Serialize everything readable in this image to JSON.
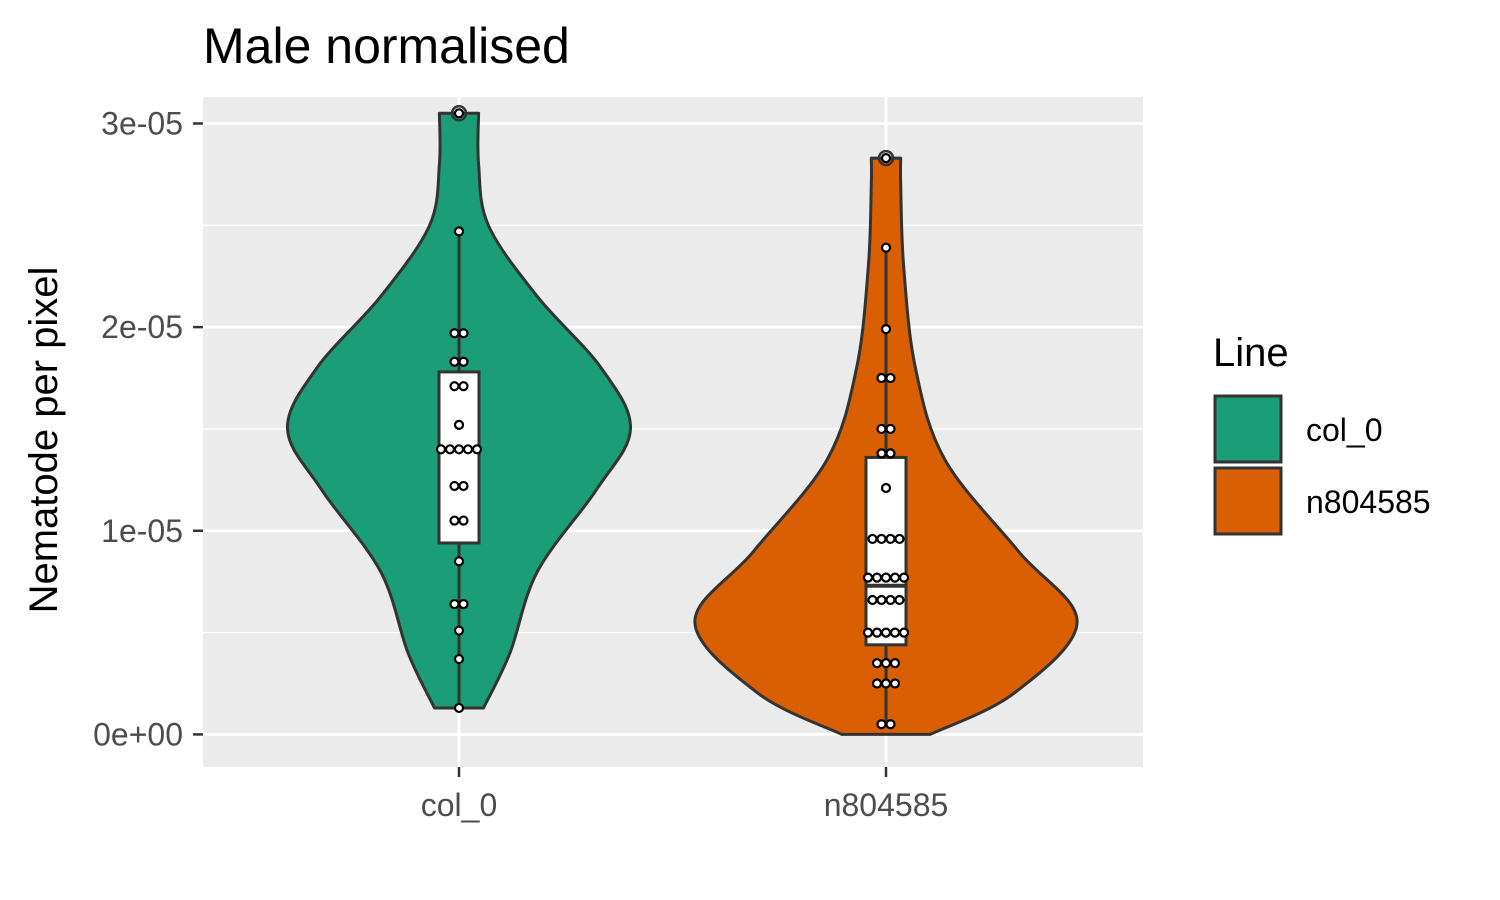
{
  "chart_data": {
    "type": "violin",
    "title": "Male normalised",
    "xlabel": "",
    "ylabel": "Nematode per pixel",
    "ylim": [
      -1.6e-06,
      3.13e-05
    ],
    "yticks": [
      {
        "value": 0.0,
        "label": "0e+00"
      },
      {
        "value": 1e-05,
        "label": "1e-05"
      },
      {
        "value": 2e-05,
        "label": "2e-05"
      },
      {
        "value": 3e-05,
        "label": "3e-05"
      }
    ],
    "categories": [
      "col_0",
      "n804585"
    ],
    "legend": {
      "title": "Line",
      "position": "right"
    },
    "grid": true,
    "series": [
      {
        "name": "col_0",
        "color": "#1b9e77",
        "violin": [
          [
            1.3e-06,
            2.5e-06
          ],
          [
            4e-06,
            5.2e-06
          ],
          [
            8e-06,
            8e-06
          ],
          [
            1.2e-05,
            1.4e-05
          ],
          [
            1.5e-05,
            1.75e-05
          ],
          [
            1.8e-05,
            1.45e-05
          ],
          [
            2.15e-05,
            8e-06
          ],
          [
            2.5e-05,
            3e-06
          ],
          [
            2.8e-05,
            2e-06
          ],
          [
            3.05e-05,
            2e-06
          ]
        ],
        "box": {
          "q1": 9.4e-06,
          "median": 1.4e-05,
          "q3": 1.78e-05,
          "whisker_low": 1.3e-06,
          "whisker_high": 2.47e-05
        },
        "points": [
          3.05e-05,
          2.47e-05,
          1.97e-05,
          1.97e-05,
          1.83e-05,
          1.83e-05,
          1.71e-05,
          1.71e-05,
          1.52e-05,
          1.4e-05,
          1.4e-05,
          1.4e-05,
          1.4e-05,
          1.4e-05,
          1.22e-05,
          1.22e-05,
          1.05e-05,
          1.05e-05,
          8.5e-06,
          6.4e-06,
          6.4e-06,
          5.1e-06,
          3.7e-06,
          1.3e-06
        ]
      },
      {
        "name": "n804585",
        "color": "#d95f02",
        "violin": [
          [
            0.0,
            4.5e-06
          ],
          [
            2e-06,
            1.3e-05
          ],
          [
            5.5e-06,
            1.95e-05
          ],
          [
            9e-06,
            1.35e-05
          ],
          [
            1.35e-05,
            6e-06
          ],
          [
            1.8e-05,
            3e-06
          ],
          [
            2.3e-05,
            1.8e-06
          ],
          [
            2.7e-05,
            1.5e-06
          ],
          [
            2.83e-05,
            1.5e-06
          ]
        ],
        "box": {
          "q1": 4.4e-06,
          "median": 7.3e-06,
          "q3": 1.36e-05,
          "whisker_low": 5e-07,
          "whisker_high": 2.39e-05
        },
        "points": [
          2.83e-05,
          2.39e-05,
          1.99e-05,
          1.75e-05,
          1.75e-05,
          1.5e-05,
          1.5e-05,
          1.38e-05,
          1.38e-05,
          1.21e-05,
          9.6e-06,
          9.6e-06,
          9.6e-06,
          9.6e-06,
          7.7e-06,
          7.7e-06,
          7.7e-06,
          7.7e-06,
          7.7e-06,
          6.6e-06,
          6.6e-06,
          6.6e-06,
          6.6e-06,
          5e-06,
          5e-06,
          5e-06,
          5e-06,
          5e-06,
          3.5e-06,
          3.5e-06,
          3.5e-06,
          2.5e-06,
          2.5e-06,
          2.5e-06,
          5e-07,
          5e-07
        ]
      }
    ]
  }
}
